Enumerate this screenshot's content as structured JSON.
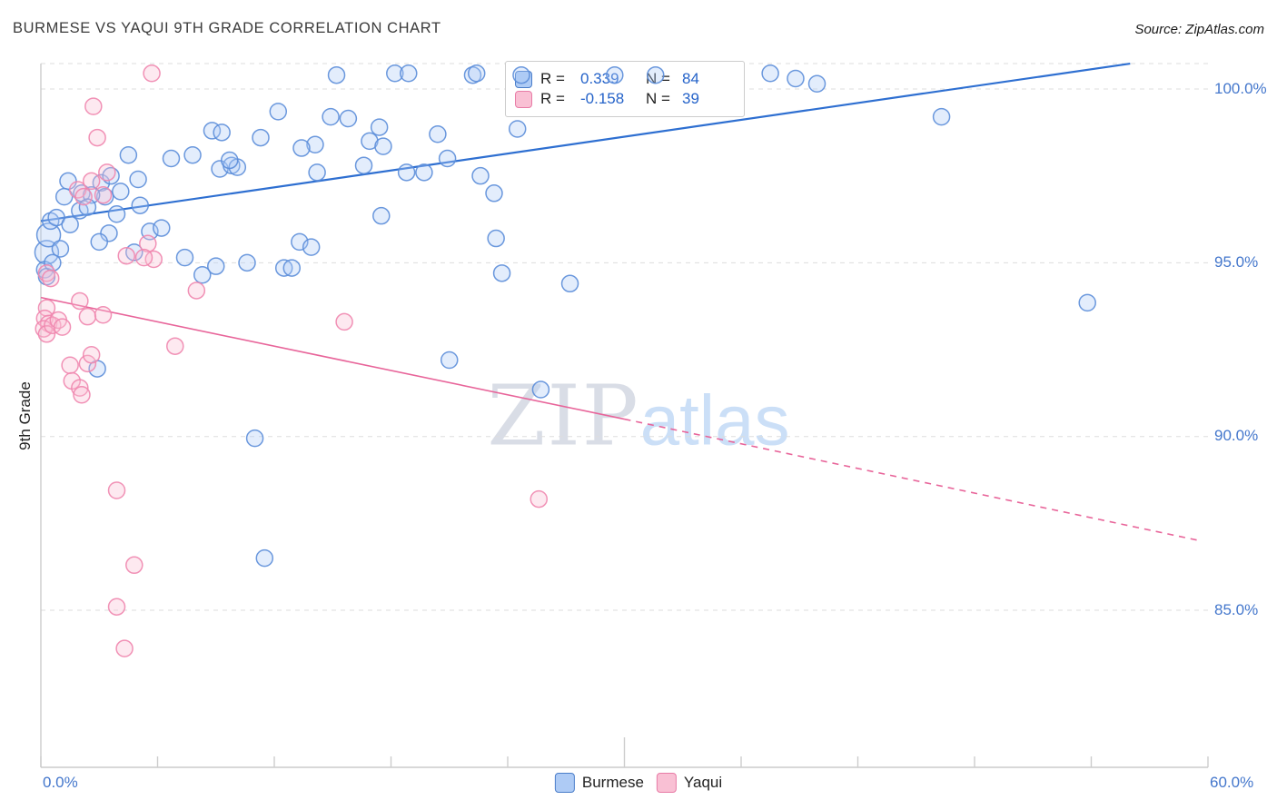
{
  "header": {
    "title": "BURMESE VS YAQUI 9TH GRADE CORRELATION CHART",
    "source": "Source: ZipAtlas.com"
  },
  "axes": {
    "y_label": "9th Grade",
    "y_ticks": [
      "100.0%",
      "95.0%",
      "90.0%",
      "85.0%"
    ],
    "x_min_label": "0.0%",
    "x_max_label": "60.0%"
  },
  "watermark": {
    "part1": "ZIP",
    "part2": "atlas"
  },
  "legend_box": {
    "rows": [
      {
        "r_label": "R =",
        "r_value": "0.339",
        "n_label": "N =",
        "n_value": "84"
      },
      {
        "r_label": "R =",
        "r_value": "-0.158",
        "n_label": "N =",
        "n_value": "39"
      }
    ]
  },
  "bottom_legend": [
    {
      "label": "Burmese"
    },
    {
      "label": "Yaqui"
    }
  ],
  "colors": {
    "axis_text": "#4477cc",
    "grid": "#dddddd",
    "axis_line": "#cccccc",
    "burmese_stroke": "#5b8dd9",
    "burmese_fill": "#aecbf5",
    "yaqui_stroke": "#ef86ae",
    "yaqui_fill": "#f9c0d4",
    "trend_blue": "#2e6fd1",
    "trend_pink": "#e8659a"
  },
  "chart_data": {
    "type": "scatter",
    "title": "BURMESE VS YAQUI 9TH GRADE CORRELATION CHART",
    "xlabel": "",
    "ylabel": "9th Grade",
    "xlim": [
      0,
      60
    ],
    "ylim": [
      80.5,
      100.7
    ],
    "x_tick_step_pct": 6,
    "y_gridlines": [
      100,
      95,
      90,
      85
    ],
    "grid": "dashed-horizontal",
    "legend_position": "bottom-center",
    "series": [
      {
        "name": "Burmese",
        "R": 0.339,
        "N": 84,
        "stroke": "#5b8dd9",
        "fill": "#aecbf5",
        "points": [
          [
            0.3,
            95.3,
            13
          ],
          [
            0.4,
            95.8,
            13
          ],
          [
            0.5,
            96.2
          ],
          [
            0.8,
            96.3
          ],
          [
            1.0,
            95.4
          ],
          [
            1.5,
            96.1
          ],
          [
            1.4,
            97.35
          ],
          [
            2.1,
            97.0
          ],
          [
            3.1,
            97.3
          ],
          [
            3.3,
            96.9
          ],
          [
            3.9,
            96.4
          ],
          [
            3.5,
            95.85
          ],
          [
            3.0,
            95.6
          ],
          [
            4.5,
            98.1
          ],
          [
            5.1,
            96.65
          ],
          [
            5.6,
            95.9
          ],
          [
            2.9,
            91.95
          ],
          [
            6.7,
            98.0
          ],
          [
            7.8,
            98.1
          ],
          [
            8.8,
            98.8
          ],
          [
            9.2,
            97.7
          ],
          [
            9.8,
            97.8
          ],
          [
            10.1,
            97.75
          ],
          [
            11.3,
            98.6
          ],
          [
            12.2,
            99.35
          ],
          [
            14.1,
            98.4
          ],
          [
            14.2,
            97.6
          ],
          [
            15.2,
            100.4
          ],
          [
            16.6,
            97.8
          ],
          [
            16.9,
            98.5
          ],
          [
            17.4,
            98.9
          ],
          [
            17.6,
            98.35
          ],
          [
            18.2,
            100.45
          ],
          [
            18.9,
            100.45
          ],
          [
            20.4,
            98.7
          ],
          [
            22.2,
            100.4
          ],
          [
            22.4,
            100.45
          ],
          [
            24.5,
            98.85
          ],
          [
            24.7,
            100.4
          ],
          [
            18.8,
            97.6
          ],
          [
            19.7,
            97.6
          ],
          [
            22.6,
            97.5
          ],
          [
            23.3,
            97.0
          ],
          [
            13.3,
            95.6
          ],
          [
            13.9,
            95.45
          ],
          [
            12.5,
            94.85
          ],
          [
            12.9,
            94.85
          ],
          [
            7.4,
            95.15
          ],
          [
            8.3,
            94.65
          ],
          [
            9.0,
            94.9
          ],
          [
            23.7,
            94.7
          ],
          [
            27.2,
            94.4
          ],
          [
            21.0,
            92.2
          ],
          [
            25.7,
            91.35
          ],
          [
            11.0,
            89.95
          ],
          [
            11.5,
            86.5
          ],
          [
            46.3,
            99.2
          ],
          [
            53.8,
            93.85
          ],
          [
            37.5,
            100.45
          ],
          [
            38.8,
            100.3
          ],
          [
            39.9,
            100.15
          ],
          [
            29.5,
            100.4
          ],
          [
            31.6,
            100.4
          ],
          [
            9.3,
            98.75
          ],
          [
            13.4,
            98.3
          ],
          [
            14.9,
            99.2
          ],
          [
            15.8,
            99.15
          ],
          [
            0.2,
            94.8
          ],
          [
            0.3,
            94.6
          ],
          [
            1.2,
            96.9
          ],
          [
            2.6,
            96.95
          ],
          [
            4.1,
            97.05
          ],
          [
            5.0,
            97.4
          ],
          [
            6.2,
            96.0
          ],
          [
            2.0,
            96.5
          ],
          [
            4.8,
            95.3
          ],
          [
            10.6,
            95.0
          ],
          [
            20.9,
            98.0
          ],
          [
            3.6,
            97.5
          ],
          [
            9.7,
            97.95
          ],
          [
            2.4,
            96.6
          ],
          [
            17.5,
            96.35
          ],
          [
            23.4,
            95.7
          ],
          [
            0.6,
            95.0
          ]
        ]
      },
      {
        "name": "Yaqui",
        "R": -0.158,
        "N": 39,
        "stroke": "#ef86ae",
        "fill": "#f9c0d4",
        "points": [
          [
            5.7,
            100.45
          ],
          [
            2.7,
            99.5
          ],
          [
            2.9,
            98.6
          ],
          [
            3.4,
            97.6
          ],
          [
            2.6,
            97.35
          ],
          [
            1.9,
            97.1
          ],
          [
            3.2,
            96.95
          ],
          [
            2.2,
            96.9
          ],
          [
            4.4,
            95.2
          ],
          [
            5.5,
            95.55
          ],
          [
            5.8,
            95.1
          ],
          [
            0.3,
            94.7
          ],
          [
            0.5,
            94.55
          ],
          [
            0.3,
            93.7
          ],
          [
            0.2,
            93.4
          ],
          [
            0.4,
            93.25
          ],
          [
            0.15,
            93.1
          ],
          [
            0.3,
            92.95
          ],
          [
            0.6,
            93.2
          ],
          [
            0.9,
            93.35
          ],
          [
            1.1,
            93.15
          ],
          [
            2.4,
            93.45
          ],
          [
            3.2,
            93.5
          ],
          [
            2.0,
            93.9
          ],
          [
            2.4,
            92.1
          ],
          [
            1.5,
            92.05
          ],
          [
            1.6,
            91.6
          ],
          [
            2.0,
            91.4
          ],
          [
            2.1,
            91.2
          ],
          [
            2.6,
            92.35
          ],
          [
            6.9,
            92.6
          ],
          [
            8.0,
            94.2
          ],
          [
            15.6,
            93.3
          ],
          [
            25.6,
            88.2
          ],
          [
            3.9,
            88.45
          ],
          [
            4.8,
            86.3
          ],
          [
            3.9,
            85.1
          ],
          [
            4.3,
            83.9
          ],
          [
            5.3,
            95.15
          ]
        ]
      }
    ],
    "trend_lines": [
      {
        "series": "Burmese",
        "style": "solid",
        "x_start": 0,
        "y_start": 96.2,
        "x_end": 56,
        "y_end": 100.73
      },
      {
        "series": "Yaqui",
        "style": "solid",
        "x_start": 0,
        "y_start": 94.0,
        "x_end": 30,
        "y_end": 90.5
      },
      {
        "series": "Yaqui",
        "style": "dashed",
        "x_start": 30,
        "y_start": 90.5,
        "x_end": 59.6,
        "y_end": 87.0
      }
    ]
  }
}
